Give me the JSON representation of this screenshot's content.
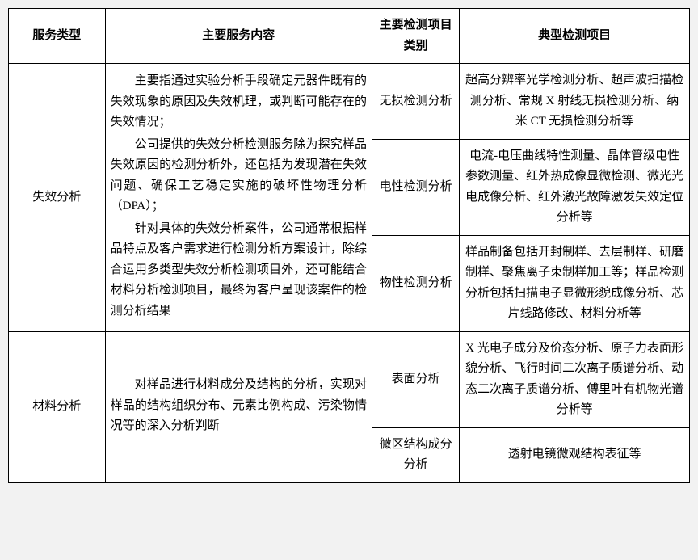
{
  "headers": {
    "col1": "服务类型",
    "col2": "主要服务内容",
    "col3": "主要检测项目类别",
    "col4": "典型检测项目"
  },
  "rows": {
    "r1": {
      "service_type": "失效分析",
      "content_p1": "主要指通过实验分析手段确定元器件既有的失效现象的原因及失效机理，或判断可能存在的失效情况；",
      "content_p2": "公司提供的失效分析检测服务除为探究样品失效原因的检测分析外，还包括为发现潜在失效问题、确保工艺稳定实施的破坏性物理分析（DPA）；",
      "content_p3": "针对具体的失效分析案件，公司通常根据样品特点及客户需求进行检测分析方案设计，除综合运用多类型失效分析检测项目外，还可能结合材料分析检测项目，最终为客户呈现该案件的检测分析结果",
      "cat1": "无损检测分析",
      "items1": "超高分辨率光学检测分析、超声波扫描检测分析、常规 X 射线无损检测分析、纳米 CT 无损检测分析等",
      "cat2": "电性检测分析",
      "items2": "电流-电压曲线特性测量、晶体管级电性参数测量、红外热成像显微检测、微光光电成像分析、红外激光故障激发失效定位分析等",
      "cat3": "物性检测分析",
      "items3": "样品制备包括开封制样、去层制样、研磨制样、聚焦离子束制样加工等；样品检测分析包括扫描电子显微形貌成像分析、芯片线路修改、材料分析等"
    },
    "r2": {
      "service_type": "材料分析",
      "content": "对样品进行材料成分及结构的分析，实现对样品的结构组织分布、元素比例构成、污染物情况等的深入分析判断",
      "cat1": "表面分析",
      "items1": "X 光电子成分及价态分析、原子力表面形貌分析、飞行时间二次离子质谱分析、动态二次离子质谱分析、傅里叶有机物光谱分析等",
      "cat2": "微区结构成分分析",
      "items2": "透射电镜微观结构表征等"
    }
  }
}
